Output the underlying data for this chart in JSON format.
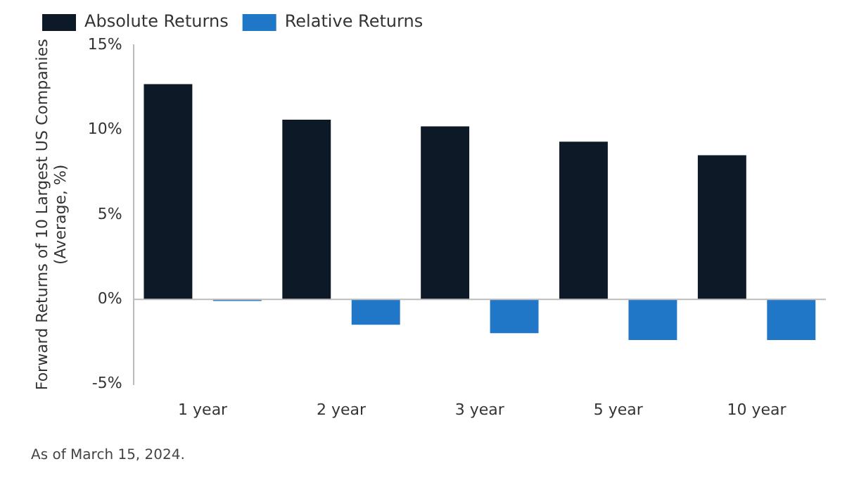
{
  "chart_data": {
    "type": "bar",
    "ylabel": "Forward Returns of 10 Largest US Companies\n(Average, %)",
    "categories": [
      "1 year",
      "2 year",
      "3 year",
      "5 year",
      "10 year"
    ],
    "series": [
      {
        "name": "Absolute Returns",
        "color": "#0d1926",
        "values": [
          12.7,
          10.6,
          10.2,
          9.3,
          8.5
        ]
      },
      {
        "name": "Relative Returns",
        "color": "#2177c7",
        "values": [
          -0.1,
          -1.5,
          -2.0,
          -2.4,
          -2.4
        ]
      }
    ],
    "ylim": [
      -5,
      15
    ],
    "yticks": [
      {
        "value": -5,
        "label": "-5%"
      },
      {
        "value": 0,
        "label": "0%"
      },
      {
        "value": 5,
        "label": "5%"
      },
      {
        "value": 10,
        "label": "10%"
      },
      {
        "value": 15,
        "label": "15%"
      }
    ],
    "grid": false,
    "ref_lines": [
      {
        "axis": "y",
        "value": 0,
        "color": "#bbbbbb"
      }
    ],
    "legend": "top",
    "annotations": [
      "As of March 15, 2024."
    ]
  }
}
